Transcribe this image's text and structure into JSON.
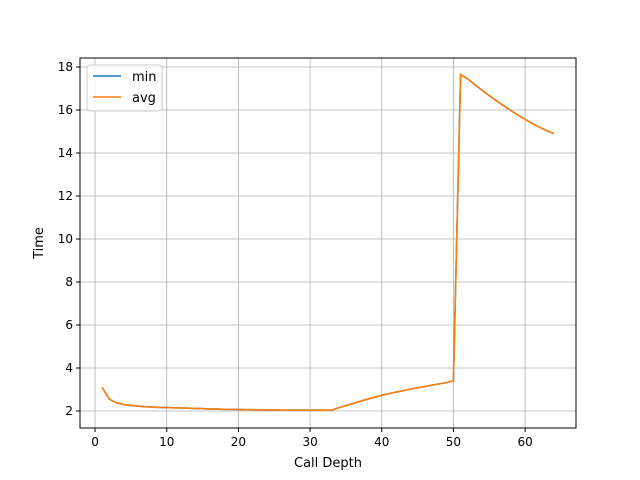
{
  "chart_data": {
    "type": "line",
    "title": "",
    "xlabel": "Call Depth",
    "ylabel": "Time",
    "xlim": [
      -2.1,
      67.1
    ],
    "ylim": [
      1.21,
      18.42
    ],
    "xticks": [
      0,
      10,
      20,
      30,
      40,
      50,
      60
    ],
    "yticks": [
      2,
      4,
      6,
      8,
      10,
      12,
      14,
      16,
      18
    ],
    "grid": true,
    "legend": "upper-left",
    "x": [
      1,
      2,
      3,
      4,
      5,
      6,
      7,
      8,
      9,
      10,
      11,
      12,
      13,
      14,
      15,
      16,
      17,
      18,
      19,
      20,
      21,
      22,
      23,
      24,
      25,
      26,
      27,
      28,
      29,
      30,
      31,
      32,
      33,
      34,
      35,
      36,
      37,
      38,
      39,
      40,
      41,
      42,
      43,
      44,
      45,
      46,
      47,
      48,
      49,
      50,
      51,
      52,
      53,
      54,
      55,
      56,
      57,
      58,
      59,
      60,
      61,
      62,
      63,
      64
    ],
    "series": [
      {
        "name": "min",
        "color": "#1f77b4",
        "values": [
          3.1,
          2.55,
          2.38,
          2.3,
          2.26,
          2.23,
          2.2,
          2.18,
          2.17,
          2.16,
          2.15,
          2.14,
          2.13,
          2.12,
          2.11,
          2.1,
          2.09,
          2.08,
          2.08,
          2.07,
          2.06,
          2.06,
          2.05,
          2.05,
          2.05,
          2.04,
          2.04,
          2.04,
          2.04,
          2.04,
          2.04,
          2.04,
          2.04,
          2.15,
          2.25,
          2.35,
          2.45,
          2.55,
          2.64,
          2.73,
          2.81,
          2.88,
          2.95,
          3.02,
          3.08,
          3.14,
          3.2,
          3.26,
          3.32,
          3.4,
          17.65,
          17.45,
          17.18,
          16.92,
          16.67,
          16.43,
          16.2,
          15.98,
          15.77,
          15.57,
          15.38,
          15.2,
          15.05,
          14.9
        ]
      },
      {
        "name": "avg",
        "color": "#ff7f0e",
        "values": [
          3.1,
          2.55,
          2.38,
          2.3,
          2.26,
          2.23,
          2.2,
          2.18,
          2.17,
          2.16,
          2.15,
          2.14,
          2.13,
          2.12,
          2.11,
          2.1,
          2.09,
          2.08,
          2.08,
          2.07,
          2.06,
          2.06,
          2.05,
          2.05,
          2.05,
          2.04,
          2.04,
          2.04,
          2.04,
          2.04,
          2.04,
          2.04,
          2.04,
          2.15,
          2.25,
          2.35,
          2.45,
          2.55,
          2.64,
          2.73,
          2.81,
          2.88,
          2.95,
          3.02,
          3.08,
          3.14,
          3.2,
          3.26,
          3.32,
          3.4,
          17.65,
          17.45,
          17.18,
          16.92,
          16.67,
          16.43,
          16.2,
          15.98,
          15.77,
          15.57,
          15.38,
          15.2,
          15.05,
          14.9
        ]
      }
    ]
  }
}
